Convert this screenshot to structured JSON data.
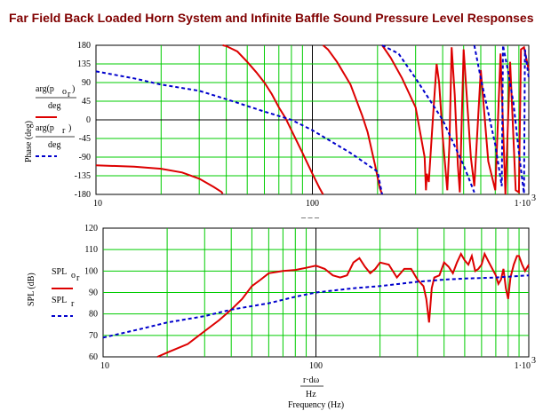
{
  "title": "Far Field Back Loaded Horn System and Infinite Baffle Sound Pressure Level Responses",
  "colors": {
    "grid": "#00cc00",
    "series_red": "#dd0000",
    "series_blue": "#0000cc",
    "title": "#800000"
  },
  "phase_plot": {
    "ylabel": "Phase (deg)",
    "legend_red_num": "arg(p",
    "legend_red_sub": "o",
    "legend_red_subsub": "r",
    "legend_red_den": "deg",
    "legend_blue_num": "arg(p",
    "legend_blue_sub": "r",
    "legend_blue_den": "deg",
    "y_ticks": [
      "180",
      "135",
      "90",
      "45",
      "0",
      "-45",
      "-90",
      "-135",
      "-180"
    ],
    "x_ticks": [
      "10",
      "100",
      "1·10"
    ],
    "x_tick_exp": "3"
  },
  "spl_plot": {
    "ylabel": "SPL (dB)",
    "legend_red": "SPL",
    "legend_red_sub": "o",
    "legend_red_subsub": "r",
    "legend_blue": "SPL",
    "legend_blue_sub": "r",
    "y_ticks": [
      "120",
      "110",
      "100",
      "90",
      "80",
      "70",
      "60"
    ],
    "x_ticks": [
      "10",
      "100",
      "1·10"
    ],
    "x_tick_exp": "3",
    "xlabel_num": "r·dω",
    "xlabel_den": "Hz",
    "xlabel": "Frequency (Hz)"
  },
  "chart_data": [
    {
      "type": "line",
      "title": "",
      "ylabel": "Phase (deg)",
      "xscale": "log",
      "xlim": [
        10,
        1000
      ],
      "ylim": [
        -180,
        180
      ],
      "grid": true,
      "series": [
        {
          "name": "arg(p o r)/deg",
          "color": "#dd0000",
          "style": "solid",
          "points": [
            [
              10,
              -110
            ],
            [
              15,
              -113
            ],
            [
              20,
              -118
            ],
            [
              25,
              -127
            ],
            [
              30,
              -142
            ],
            [
              35,
              -162
            ],
            [
              38,
              -174
            ],
            [
              38.5,
              -178
            ],
            [
              38.5,
              180
            ],
            [
              40,
              178
            ],
            [
              45,
              165
            ],
            [
              50,
              140
            ],
            [
              55,
              115
            ],
            [
              60,
              90
            ],
            [
              65,
              62
            ],
            [
              70,
              30
            ],
            [
              75,
              5
            ],
            [
              80,
              -25
            ],
            [
              90,
              -80
            ],
            [
              100,
              -130
            ],
            [
              108,
              -165
            ],
            [
              112,
              -180
            ],
            [
              112,
              180
            ],
            [
              118,
              170
            ],
            [
              130,
              140
            ],
            [
              150,
              85
            ],
            [
              170,
              10
            ],
            [
              180,
              -30
            ],
            [
              195,
              -110
            ],
            [
              205,
              -165
            ],
            [
              210,
              -180
            ],
            [
              210,
              180
            ],
            [
              230,
              150
            ],
            [
              260,
              100
            ],
            [
              300,
              30
            ],
            [
              330,
              -90
            ],
            [
              335,
              -170
            ],
            [
              338,
              -130
            ],
            [
              345,
              -150
            ],
            [
              360,
              0
            ],
            [
              375,
              135
            ],
            [
              385,
              90
            ],
            [
              400,
              -40
            ],
            [
              420,
              -170
            ],
            [
              430,
              -60
            ],
            [
              440,
              175
            ],
            [
              455,
              60
            ],
            [
              470,
              -110
            ],
            [
              480,
              -175
            ],
            [
              500,
              170
            ],
            [
              540,
              -90
            ],
            [
              560,
              -160
            ],
            [
              600,
              120
            ],
            [
              650,
              -100
            ],
            [
              700,
              -170
            ],
            [
              740,
              160
            ],
            [
              780,
              -180
            ],
            [
              820,
              140
            ],
            [
              870,
              -170
            ],
            [
              900,
              -175
            ],
            [
              920,
              170
            ],
            [
              950,
              175
            ],
            [
              1000,
              120
            ]
          ]
        },
        {
          "name": "arg(p r)/deg",
          "color": "#0000cc",
          "style": "dashed",
          "points": [
            [
              10,
              117
            ],
            [
              15,
              100
            ],
            [
              20,
              85
            ],
            [
              30,
              70
            ],
            [
              40,
              50
            ],
            [
              60,
              20
            ],
            [
              80,
              0
            ],
            [
              100,
              -25
            ],
            [
              150,
              -80
            ],
            [
              200,
              -125
            ],
            [
              210,
              -180
            ],
            [
              210,
              180
            ],
            [
              250,
              160
            ],
            [
              300,
              100
            ],
            [
              400,
              0
            ],
            [
              500,
              -110
            ],
            [
              560,
              -175
            ],
            [
              560,
              180
            ],
            [
              600,
              100
            ],
            [
              700,
              -60
            ],
            [
              750,
              -160
            ],
            [
              760,
              180
            ],
            [
              800,
              120
            ],
            [
              850,
              40
            ],
            [
              900,
              -80
            ],
            [
              950,
              -178
            ],
            [
              960,
              170
            ],
            [
              1000,
              100
            ]
          ]
        }
      ]
    },
    {
      "type": "line",
      "title": "",
      "xlabel": "Frequency (Hz)",
      "ylabel": "SPL (dB)",
      "xscale": "log",
      "xlim": [
        10,
        1000
      ],
      "ylim": [
        60,
        120
      ],
      "grid": true,
      "series": [
        {
          "name": "SPL o r",
          "color": "#dd0000",
          "style": "solid",
          "points": [
            [
              18,
              60
            ],
            [
              20,
              62
            ],
            [
              25,
              66
            ],
            [
              30,
              72
            ],
            [
              35,
              77
            ],
            [
              40,
              82
            ],
            [
              45,
              87
            ],
            [
              50,
              93
            ],
            [
              55,
              96
            ],
            [
              60,
              99
            ],
            [
              70,
              100
            ],
            [
              80,
              100.5
            ],
            [
              90,
              101.5
            ],
            [
              100,
              102.5
            ],
            [
              110,
              101
            ],
            [
              120,
              98
            ],
            [
              130,
              97
            ],
            [
              140,
              98
            ],
            [
              150,
              104
            ],
            [
              160,
              106
            ],
            [
              170,
              102
            ],
            [
              180,
              99
            ],
            [
              190,
              101
            ],
            [
              200,
              104
            ],
            [
              220,
              103
            ],
            [
              240,
              97
            ],
            [
              260,
              101
            ],
            [
              280,
              101
            ],
            [
              300,
              96
            ],
            [
              320,
              93
            ],
            [
              330,
              87
            ],
            [
              340,
              76
            ],
            [
              350,
              92
            ],
            [
              360,
              97
            ],
            [
              380,
              98
            ],
            [
              400,
              104
            ],
            [
              420,
              102
            ],
            [
              440,
              99
            ],
            [
              460,
              104
            ],
            [
              480,
              108
            ],
            [
              500,
              105
            ],
            [
              520,
              103
            ],
            [
              540,
              107
            ],
            [
              560,
              100
            ],
            [
              580,
              101
            ],
            [
              600,
              103
            ],
            [
              620,
              108
            ],
            [
              650,
              104
            ],
            [
              700,
              98
            ],
            [
              720,
              94
            ],
            [
              740,
              96
            ],
            [
              760,
              101
            ],
            [
              780,
              92
            ],
            [
              800,
              87
            ],
            [
              820,
              97
            ],
            [
              850,
              103
            ],
            [
              880,
              107
            ],
            [
              900,
              107
            ],
            [
              930,
              103
            ],
            [
              960,
              100
            ],
            [
              1000,
              103
            ]
          ]
        },
        {
          "name": "SPL r",
          "color": "#0000cc",
          "style": "dashed",
          "points": [
            [
              10,
              69
            ],
            [
              15,
              73
            ],
            [
              20,
              76
            ],
            [
              30,
              79
            ],
            [
              40,
              82
            ],
            [
              60,
              85
            ],
            [
              80,
              88
            ],
            [
              100,
              90
            ],
            [
              150,
              92
            ],
            [
              200,
              93
            ],
            [
              300,
              95
            ],
            [
              400,
              96
            ],
            [
              500,
              96.5
            ],
            [
              700,
              97
            ],
            [
              1000,
              98
            ]
          ]
        }
      ]
    }
  ]
}
